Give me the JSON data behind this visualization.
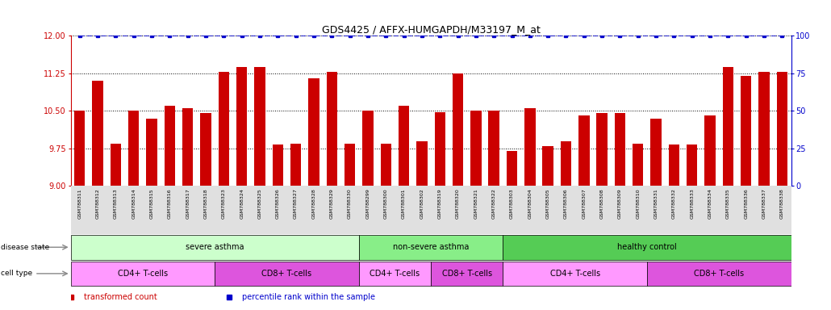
{
  "title": "GDS4425 / AFFX-HUMGAPDH/M33197_M_at",
  "samples": [
    "GSM788311",
    "GSM788312",
    "GSM788313",
    "GSM788314",
    "GSM788315",
    "GSM788316",
    "GSM788317",
    "GSM788318",
    "GSM788323",
    "GSM788324",
    "GSM788325",
    "GSM788326",
    "GSM788327",
    "GSM788328",
    "GSM788329",
    "GSM788330",
    "GSM788299",
    "GSM788300",
    "GSM788301",
    "GSM788302",
    "GSM788319",
    "GSM788320",
    "GSM788321",
    "GSM788322",
    "GSM788303",
    "GSM788304",
    "GSM788305",
    "GSM788306",
    "GSM788307",
    "GSM788308",
    "GSM788309",
    "GSM788310",
    "GSM788331",
    "GSM788332",
    "GSM788333",
    "GSM788334",
    "GSM788335",
    "GSM788336",
    "GSM788337",
    "GSM788338"
  ],
  "values": [
    10.5,
    11.1,
    9.85,
    10.5,
    10.35,
    10.6,
    10.55,
    10.45,
    11.28,
    11.38,
    11.38,
    9.83,
    9.85,
    11.15,
    11.27,
    9.85,
    10.5,
    9.85,
    10.6,
    9.9,
    10.48,
    11.25,
    10.5,
    10.5,
    9.7,
    10.55,
    9.8,
    9.9,
    10.4,
    10.45,
    10.45,
    9.85,
    10.35,
    9.82,
    9.82,
    10.4,
    11.38,
    11.2,
    11.28,
    11.28
  ],
  "percentile_values": [
    100,
    100,
    100,
    100,
    100,
    100,
    100,
    100,
    100,
    100,
    100,
    100,
    100,
    100,
    100,
    100,
    100,
    100,
    100,
    100,
    100,
    100,
    100,
    100,
    100,
    100,
    100,
    100,
    100,
    100,
    100,
    100,
    100,
    100,
    100,
    100,
    100,
    100,
    100,
    100
  ],
  "bar_color": "#cc0000",
  "percentile_color": "#0000cc",
  "ylim": [
    9.0,
    12.0
  ],
  "yticks": [
    9.0,
    9.75,
    10.5,
    11.25,
    12.0
  ],
  "y2lim": [
    0,
    100
  ],
  "y2ticks": [
    0,
    25,
    50,
    75,
    100
  ],
  "disease_state_groups": [
    {
      "label": "severe asthma",
      "start": 0,
      "end": 16,
      "color": "#ccffcc"
    },
    {
      "label": "non-severe asthma",
      "start": 16,
      "end": 24,
      "color": "#88ee88"
    },
    {
      "label": "healthy control",
      "start": 24,
      "end": 40,
      "color": "#55cc55"
    }
  ],
  "cell_type_groups": [
    {
      "label": "CD4+ T-cells",
      "start": 0,
      "end": 8,
      "color": "#ff99ff"
    },
    {
      "label": "CD8+ T-cells",
      "start": 8,
      "end": 16,
      "color": "#dd55dd"
    },
    {
      "label": "CD4+ T-cells",
      "start": 16,
      "end": 20,
      "color": "#ff99ff"
    },
    {
      "label": "CD8+ T-cells",
      "start": 20,
      "end": 24,
      "color": "#dd55dd"
    },
    {
      "label": "CD4+ T-cells",
      "start": 24,
      "end": 32,
      "color": "#ff99ff"
    },
    {
      "label": "CD8+ T-cells",
      "start": 32,
      "end": 40,
      "color": "#dd55dd"
    }
  ],
  "legend_items": [
    {
      "label": "transformed count",
      "color": "#cc0000"
    },
    {
      "label": "percentile rank within the sample",
      "color": "#0000cc"
    }
  ]
}
